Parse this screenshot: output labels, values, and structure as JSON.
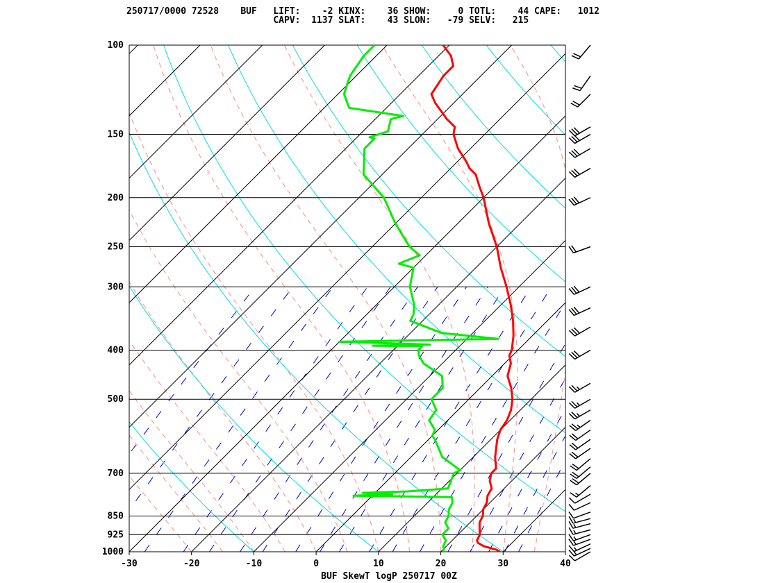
{
  "header": {
    "line1": "250717/0000 72528    BUF   LIFT:    -2 KINX:    36 SHOW:     0 TOTL:    44 CAPE:   1012",
    "line2": "                           CAPV:  1137 SLAT:    43 SLON:   -79 SELV:   215"
  },
  "chart_data": {
    "type": "line",
    "title": "BUF SkewT logP 250717 00Z",
    "station": "BUF",
    "station_id": "72528",
    "datetime": "250717/0000",
    "indices": {
      "LIFT": "-2",
      "KINX": "36",
      "SHOW": "0",
      "TOTL": "44",
      "CAPE": "1012",
      "CAPV": "1137",
      "SLAT": "43",
      "SLON": "-79",
      "SELV": "215"
    },
    "x_ticks": [
      "-30",
      "-20",
      "-10",
      "0",
      "10",
      "20",
      "30",
      "40"
    ],
    "y_ticks": [
      "100",
      "150",
      "200",
      "250",
      "300",
      "400",
      "500",
      "700",
      "850",
      "925",
      "1000"
    ],
    "xlim": [
      -30,
      40
    ],
    "ylim": [
      1000,
      100
    ],
    "yscale": "log",
    "skew": true,
    "colors": {
      "temperature": "#ff0000",
      "dewpoint": "#00ee00",
      "isotherm": "#000000",
      "dry_adiabat": "#00e0e0",
      "moist_adiabat": "#ff9999",
      "mixing_ratio": "#0000cc",
      "isobar": "#000000",
      "barb": "#000000"
    },
    "series": [
      {
        "key": "temperature",
        "points": [
          [
            1000,
            29.5
          ],
          [
            990,
            28.5
          ],
          [
            975,
            26
          ],
          [
            960,
            24.5
          ],
          [
            950,
            24
          ],
          [
            925,
            23.5
          ],
          [
            900,
            22.5
          ],
          [
            875,
            21.5
          ],
          [
            850,
            21
          ],
          [
            825,
            20
          ],
          [
            800,
            19.5
          ],
          [
            775,
            18.5
          ],
          [
            750,
            18
          ],
          [
            725,
            16.5
          ],
          [
            700,
            15.5
          ],
          [
            685,
            15.5
          ],
          [
            650,
            13.5
          ],
          [
            600,
            11
          ],
          [
            575,
            10
          ],
          [
            550,
            9.5
          ],
          [
            525,
            8.5
          ],
          [
            500,
            7
          ],
          [
            475,
            5
          ],
          [
            450,
            2.5
          ],
          [
            425,
            1
          ],
          [
            410,
            -0.5
          ],
          [
            400,
            -1
          ],
          [
            375,
            -3
          ],
          [
            350,
            -5.5
          ],
          [
            325,
            -8.5
          ],
          [
            300,
            -12
          ],
          [
            275,
            -16
          ],
          [
            250,
            -20
          ],
          [
            225,
            -25
          ],
          [
            200,
            -30
          ],
          [
            190,
            -32.5
          ],
          [
            180,
            -35
          ],
          [
            175,
            -37
          ],
          [
            170,
            -38.5
          ],
          [
            160,
            -42
          ],
          [
            150,
            -45
          ],
          [
            145,
            -46
          ],
          [
            140,
            -48.5
          ],
          [
            130,
            -53
          ],
          [
            125,
            -55
          ],
          [
            115,
            -56
          ],
          [
            110,
            -56
          ],
          [
            105,
            -58
          ],
          [
            100,
            -61
          ]
        ]
      },
      {
        "key": "dewpoint",
        "points": [
          [
            1000,
            20.5
          ],
          [
            975,
            19.5
          ],
          [
            950,
            19
          ],
          [
            925,
            17.5
          ],
          [
            900,
            17.5
          ],
          [
            875,
            16
          ],
          [
            850,
            15.5
          ],
          [
            825,
            14.5
          ],
          [
            800,
            14
          ],
          [
            780,
            13
          ],
          [
            775,
            -3
          ],
          [
            770,
            3
          ],
          [
            765,
            -2
          ],
          [
            760,
            5
          ],
          [
            750,
            11
          ],
          [
            700,
            9.5
          ],
          [
            690,
            10
          ],
          [
            650,
            5
          ],
          [
            600,
            1
          ],
          [
            590,
            0
          ],
          [
            575,
            -0.5
          ],
          [
            550,
            -3
          ],
          [
            525,
            -3.5
          ],
          [
            500,
            -6
          ],
          [
            475,
            -6
          ],
          [
            450,
            -8
          ],
          [
            425,
            -13
          ],
          [
            410,
            -15
          ],
          [
            400,
            -16
          ],
          [
            393,
            -16
          ],
          [
            392,
            -24
          ],
          [
            390,
            -15
          ],
          [
            385,
            -30
          ],
          [
            380,
            -5
          ],
          [
            375,
            -10
          ],
          [
            370,
            -15
          ],
          [
            350,
            -22
          ],
          [
            340,
            -22.5
          ],
          [
            325,
            -24
          ],
          [
            300,
            -27.5
          ],
          [
            275,
            -30
          ],
          [
            270,
            -33
          ],
          [
            260,
            -31
          ],
          [
            250,
            -34
          ],
          [
            225,
            -40
          ],
          [
            200,
            -46
          ],
          [
            180,
            -53
          ],
          [
            160,
            -57
          ],
          [
            153,
            -57
          ],
          [
            152,
            -58
          ],
          [
            148,
            -56
          ],
          [
            140,
            -57.5
          ],
          [
            138,
            -56
          ],
          [
            133,
            -66
          ],
          [
            125,
            -69
          ],
          [
            120,
            -70
          ],
          [
            115,
            -71
          ],
          [
            105,
            -72
          ],
          [
            100,
            -72
          ]
        ]
      }
    ],
    "wind_barbs": [
      {
        "p": 1000,
        "dir": 240,
        "spd": 10
      },
      {
        "p": 985,
        "dir": 245,
        "spd": 15
      },
      {
        "p": 965,
        "dir": 245,
        "spd": 15
      },
      {
        "p": 945,
        "dir": 250,
        "spd": 15
      },
      {
        "p": 925,
        "dir": 250,
        "spd": 15
      },
      {
        "p": 905,
        "dir": 255,
        "spd": 15
      },
      {
        "p": 880,
        "dir": 255,
        "spd": 15
      },
      {
        "p": 860,
        "dir": 255,
        "spd": 15
      },
      {
        "p": 835,
        "dir": 250,
        "spd": 10
      },
      {
        "p": 800,
        "dir": 245,
        "spd": 10
      },
      {
        "p": 770,
        "dir": 240,
        "spd": 10
      },
      {
        "p": 740,
        "dir": 230,
        "spd": 15
      },
      {
        "p": 700,
        "dir": 230,
        "spd": 20
      },
      {
        "p": 680,
        "dir": 230,
        "spd": 20
      },
      {
        "p": 655,
        "dir": 230,
        "spd": 20
      },
      {
        "p": 625,
        "dir": 235,
        "spd": 20
      },
      {
        "p": 600,
        "dir": 235,
        "spd": 20
      },
      {
        "p": 575,
        "dir": 235,
        "spd": 20
      },
      {
        "p": 550,
        "dir": 235,
        "spd": 25
      },
      {
        "p": 525,
        "dir": 240,
        "spd": 25
      },
      {
        "p": 500,
        "dir": 240,
        "spd": 25
      },
      {
        "p": 465,
        "dir": 240,
        "spd": 25
      },
      {
        "p": 400,
        "dir": 240,
        "spd": 30
      },
      {
        "p": 360,
        "dir": 240,
        "spd": 30
      },
      {
        "p": 330,
        "dir": 245,
        "spd": 30
      },
      {
        "p": 300,
        "dir": 245,
        "spd": 30
      },
      {
        "p": 250,
        "dir": 250,
        "spd": 20
      },
      {
        "p": 200,
        "dir": 245,
        "spd": 30
      },
      {
        "p": 175,
        "dir": 240,
        "spd": 30
      },
      {
        "p": 160,
        "dir": 240,
        "spd": 30
      },
      {
        "p": 150,
        "dir": 240,
        "spd": 30
      },
      {
        "p": 145,
        "dir": 240,
        "spd": 30
      },
      {
        "p": 125,
        "dir": 225,
        "spd": 20
      },
      {
        "p": 115,
        "dir": 215,
        "spd": 20
      },
      {
        "p": 100,
        "dir": 220,
        "spd": 20
      }
    ]
  }
}
